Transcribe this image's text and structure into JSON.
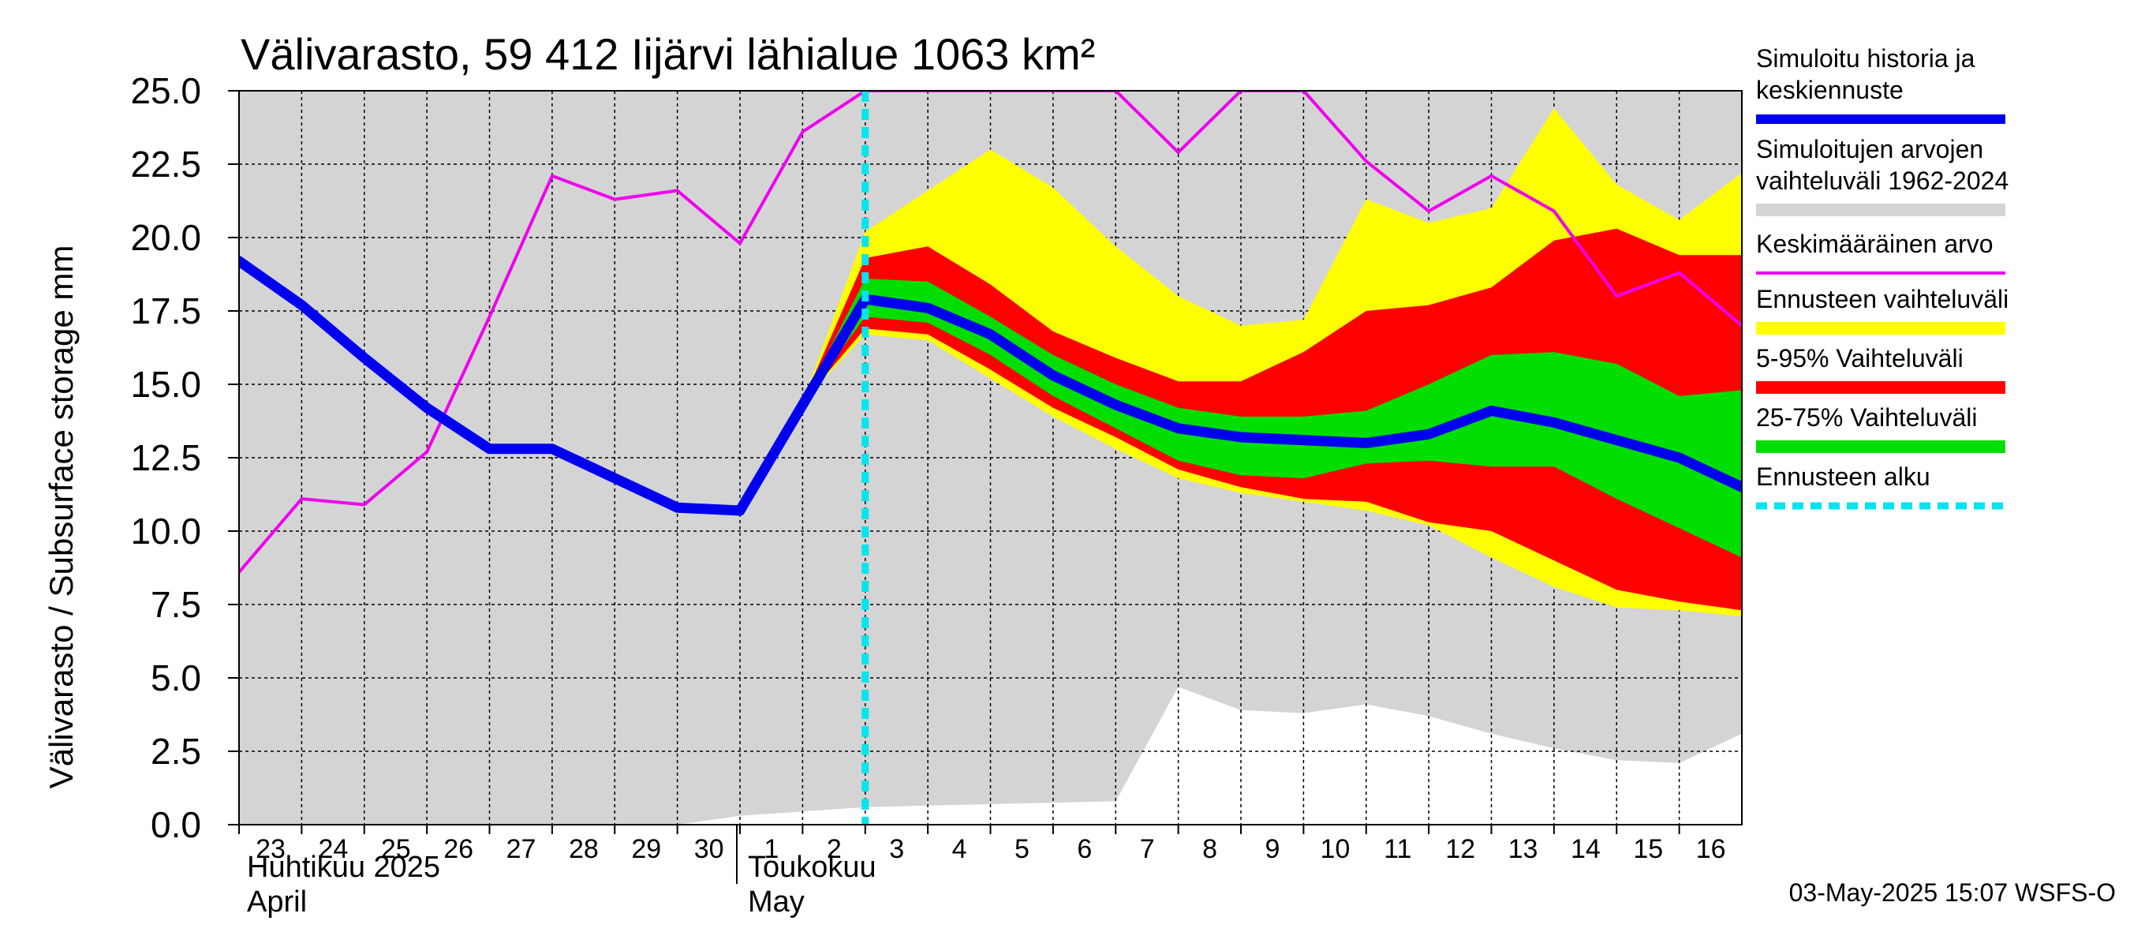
{
  "chart_data": {
    "type": "area",
    "title": "Välivarasto, 59 412 Iijärvi lähialue 1063 km²",
    "ylabel": "Välivarasto / Subsurface storage  mm",
    "ylim": [
      0,
      25
    ],
    "yticks": [
      "0.0",
      "2.5",
      "5.0",
      "7.5",
      "10.0",
      "12.5",
      "15.0",
      "17.5",
      "20.0",
      "22.5",
      "25.0"
    ],
    "x_days": [
      "23",
      "24",
      "25",
      "26",
      "27",
      "28",
      "29",
      "30",
      "1",
      "2",
      "3",
      "4",
      "5",
      "6",
      "7",
      "8",
      "9",
      "10",
      "11",
      "12",
      "13",
      "14",
      "15",
      "16"
    ],
    "x_month_labels": [
      {
        "fi": "Huhtikuu  2025",
        "en": "April",
        "at_index": 0
      },
      {
        "fi": "Toukokuu",
        "en": "May",
        "at_index": 8
      }
    ],
    "x_range": [
      0,
      24
    ],
    "forecast_start_x": 10,
    "grid": true,
    "legend": [
      {
        "key": "history",
        "lines": [
          "Simuloitu historia ja",
          "keskiennuste"
        ],
        "color": "#0000ee",
        "style": "thick-line"
      },
      {
        "key": "range_hist",
        "lines": [
          "Simuloitujen arvojen",
          "vaihteluväli 1962-2024"
        ],
        "color": "#d4d4d4",
        "style": "band"
      },
      {
        "key": "mean",
        "lines": [
          "Keskimääräinen arvo"
        ],
        "color": "#ee00ee",
        "style": "line"
      },
      {
        "key": "fc_range",
        "lines": [
          "Ennusteen vaihteluväli"
        ],
        "color": "#ffff00",
        "style": "band"
      },
      {
        "key": "p5_95",
        "lines": [
          "5-95% Vaihteluväli"
        ],
        "color": "#ff0000",
        "style": "band"
      },
      {
        "key": "p25_75",
        "lines": [
          "25-75% Vaihteluväli"
        ],
        "color": "#00dd00",
        "style": "band"
      },
      {
        "key": "fc_start",
        "lines": [
          "Ennusteen alku"
        ],
        "color": "#00e5ee",
        "style": "dashed"
      }
    ],
    "series": {
      "hist_band": {
        "x": [
          0,
          1,
          2,
          3,
          4,
          5,
          6,
          7,
          8,
          9,
          10,
          11,
          12,
          13,
          14,
          15,
          16,
          17,
          18,
          19,
          20,
          21,
          22,
          23,
          24
        ],
        "upper": [
          25,
          25,
          25,
          25,
          25,
          25,
          25,
          25,
          25,
          25,
          25,
          25,
          25,
          25,
          25,
          25,
          25,
          25,
          25,
          25,
          25,
          25,
          25,
          25,
          25
        ],
        "lower": [
          0,
          0,
          0,
          0,
          0,
          0,
          0,
          0,
          0.3,
          0.45,
          0.6,
          0.65,
          0.7,
          0.75,
          0.8,
          4.7,
          3.9,
          3.8,
          4.1,
          3.7,
          3.1,
          2.6,
          2.2,
          2.1,
          3.1
        ]
      },
      "mean": {
        "x": [
          0,
          1,
          2,
          3,
          4,
          5,
          6,
          7,
          8,
          9,
          10,
          14,
          15,
          16,
          17,
          18,
          19,
          20,
          21,
          22,
          23,
          24
        ],
        "y": [
          8.6,
          11.1,
          10.9,
          12.7,
          17.3,
          22.1,
          21.3,
          21.6,
          19.8,
          23.6,
          25.0,
          25.0,
          22.9,
          25.0,
          25.0,
          22.6,
          20.9,
          22.1,
          20.9,
          18.0,
          18.8,
          17.0
        ]
      },
      "fc_range": {
        "x": [
          9,
          10,
          11,
          12,
          13,
          14,
          15,
          16,
          17,
          18,
          19,
          20,
          21,
          22,
          23,
          24
        ],
        "upper": [
          14.4,
          20.2,
          21.6,
          23.0,
          21.7,
          19.7,
          18.0,
          17.0,
          17.2,
          21.3,
          20.5,
          21.0,
          24.4,
          21.8,
          20.6,
          22.2
        ],
        "lower": [
          14.4,
          16.7,
          16.5,
          15.2,
          13.9,
          12.8,
          11.8,
          11.3,
          11.0,
          10.7,
          10.2,
          9.1,
          8.1,
          7.4,
          7.3,
          7.1
        ]
      },
      "p5_95": {
        "x": [
          9,
          10,
          11,
          12,
          13,
          14,
          15,
          16,
          17,
          18,
          19,
          20,
          21,
          22,
          23,
          24
        ],
        "upper": [
          14.4,
          19.3,
          19.7,
          18.4,
          16.8,
          15.9,
          15.1,
          15.1,
          16.1,
          17.5,
          17.7,
          18.3,
          19.9,
          20.3,
          19.4,
          19.4
        ],
        "lower": [
          14.4,
          16.9,
          16.7,
          15.5,
          14.2,
          13.2,
          12.1,
          11.5,
          11.1,
          11.0,
          10.3,
          10.0,
          9.0,
          8.0,
          7.6,
          7.3
        ]
      },
      "p25_75": {
        "x": [
          9,
          10,
          11,
          12,
          13,
          14,
          15,
          16,
          17,
          18,
          19,
          20,
          21,
          22,
          23,
          24
        ],
        "upper": [
          14.4,
          18.6,
          18.5,
          17.3,
          16.0,
          15.0,
          14.2,
          13.9,
          13.9,
          14.1,
          15.0,
          16.0,
          16.1,
          15.7,
          14.6,
          14.8
        ],
        "lower": [
          14.4,
          17.3,
          17.1,
          16.0,
          14.6,
          13.5,
          12.4,
          11.9,
          11.8,
          12.3,
          12.4,
          12.2,
          12.2,
          11.1,
          10.1,
          9.1
        ]
      },
      "history": {
        "x": [
          0,
          1,
          2,
          3,
          4,
          5,
          6,
          7,
          8,
          9,
          10,
          11,
          12,
          13,
          14,
          15,
          16,
          17,
          18,
          19,
          20,
          21,
          22,
          23,
          24
        ],
        "y": [
          19.2,
          17.7,
          15.9,
          14.2,
          12.8,
          12.8,
          11.8,
          10.8,
          10.7,
          14.3,
          17.9,
          17.6,
          16.7,
          15.3,
          14.3,
          13.5,
          13.2,
          13.1,
          13.0,
          13.3,
          14.1,
          13.7,
          13.1,
          12.5,
          11.5
        ]
      }
    }
  },
  "footer": {
    "timestamp": "03-May-2025 15:07 WSFS-O"
  }
}
